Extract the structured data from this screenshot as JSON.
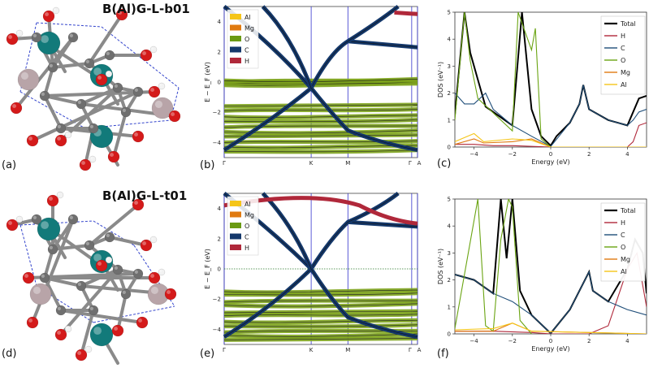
{
  "panels": {
    "a": "(a)",
    "b": "(b)",
    "c": "(c)",
    "d": "(d)",
    "e": "(e)",
    "f": "(f)"
  },
  "titles": {
    "top": "B(Al)G-L-b01",
    "bottom": "B(Al)G-L-t01"
  },
  "band_axes": {
    "ylabel": "E − E_F (eV)",
    "yticks": [
      "4",
      "2",
      "0",
      "−2",
      "−4"
    ],
    "kpoints": [
      "Γ",
      "K",
      "M",
      "Γ",
      "A"
    ]
  },
  "dos_axes": {
    "xlabel": "Energy (eV)",
    "ylabel": "DOS (eV⁻¹)",
    "xticks": [
      "−4",
      "−2",
      "0",
      "2",
      "4"
    ],
    "yticks": [
      "0",
      "1",
      "2",
      "3",
      "4",
      "5"
    ]
  },
  "band_legend": [
    {
      "label": "Al",
      "color": "#f5c518"
    },
    {
      "label": "Mg",
      "color": "#e07a10"
    },
    {
      "label": "O",
      "color": "#6a9a12"
    },
    {
      "label": "C",
      "color": "#14386b"
    },
    {
      "label": "H",
      "color": "#b0283a"
    }
  ],
  "dos_legend": [
    {
      "label": "Total",
      "color": "#000000"
    },
    {
      "label": "H",
      "color": "#b0283a"
    },
    {
      "label": "C",
      "color": "#1f4e79"
    },
    {
      "label": "O",
      "color": "#6aa412"
    },
    {
      "label": "Mg",
      "color": "#e07a10"
    },
    {
      "label": "Al",
      "color": "#f5c518"
    }
  ],
  "chart_data": [
    {
      "type": "line",
      "panel": "c",
      "xlabel": "Energy (eV)",
      "ylabel": "DOS (eV⁻¹)",
      "xlim": [
        -5,
        5
      ],
      "ylim": [
        0,
        5
      ],
      "series": [
        {
          "name": "Total",
          "x": [
            -5,
            -4.5,
            -4.2,
            -3.8,
            -3.4,
            -2,
            -1.5,
            -1,
            -0.5,
            0,
            0.3,
            1,
            1.5,
            1.7,
            2,
            3,
            4,
            4.3,
            4.6,
            5
          ],
          "y": [
            1.2,
            5,
            3.5,
            2.5,
            1.5,
            0.8,
            5,
            1.4,
            0.4,
            0.05,
            0.4,
            0.9,
            1.6,
            2.3,
            1.4,
            1.0,
            0.8,
            1.3,
            1.8,
            1.9
          ]
        },
        {
          "name": "H",
          "x": [
            -5,
            -4,
            -3,
            -2,
            0,
            2,
            4,
            4.3,
            4.6,
            5
          ],
          "y": [
            0.1,
            0.1,
            0.05,
            0.05,
            0,
            0,
            0,
            0.2,
            0.8,
            0.9
          ]
        },
        {
          "name": "C",
          "x": [
            -5,
            -4.5,
            -4,
            -3.4,
            -3,
            -2,
            -1,
            0,
            1,
            1.5,
            1.7,
            2,
            3,
            4,
            4.3,
            4.6,
            5
          ],
          "y": [
            2.0,
            1.6,
            1.6,
            2.0,
            1.4,
            0.8,
            0.4,
            0.02,
            0.9,
            1.6,
            2.3,
            1.4,
            1.0,
            0.8,
            1.0,
            1.3,
            1.4
          ]
        },
        {
          "name": "O",
          "x": [
            -5,
            -4.5,
            -4.2,
            -3.8,
            -2,
            -1.7,
            -1.5,
            -1,
            -0.8,
            -0.5,
            0
          ],
          "y": [
            1.0,
            5,
            3.2,
            1.8,
            0.6,
            5,
            4.6,
            3.6,
            4.4,
            0.3,
            0
          ]
        },
        {
          "name": "Mg",
          "x": [
            -5,
            -4,
            -3.5,
            -2,
            -1,
            0,
            5
          ],
          "y": [
            0.1,
            0.3,
            0.15,
            0.2,
            0.3,
            0,
            0
          ]
        },
        {
          "name": "Al",
          "x": [
            -5,
            -4,
            -3.5,
            -2,
            -1,
            0,
            5
          ],
          "y": [
            0.2,
            0.5,
            0.2,
            0.3,
            0.25,
            0,
            0
          ]
        }
      ]
    },
    {
      "type": "line",
      "panel": "f",
      "xlabel": "Energy (eV)",
      "ylabel": "DOS (eV⁻¹)",
      "xlim": [
        -5,
        5
      ],
      "ylim": [
        0,
        5
      ],
      "series": [
        {
          "name": "Total",
          "x": [
            -5,
            -4,
            -3,
            -2.6,
            -2.3,
            -2,
            -1.6,
            -1,
            0,
            1,
            2,
            2.2,
            3,
            4,
            4.4,
            4.8,
            5
          ],
          "y": [
            2.2,
            2.0,
            1.5,
            5,
            2.8,
            5,
            1.6,
            0.7,
            0.02,
            0.9,
            2.3,
            1.6,
            1.2,
            2.4,
            3.5,
            3.0,
            1.5
          ]
        },
        {
          "name": "H",
          "x": [
            -5,
            -3,
            -1,
            0,
            2,
            3,
            4,
            4.5,
            5
          ],
          "y": [
            0.1,
            0.1,
            0.05,
            0,
            0,
            0.3,
            2.4,
            3.0,
            1.0
          ]
        },
        {
          "name": "C",
          "x": [
            -5,
            -4,
            -3,
            -2,
            -1,
            0,
            1,
            2,
            2.2,
            3,
            4,
            5
          ],
          "y": [
            2.2,
            2.0,
            1.5,
            1.2,
            0.7,
            0.02,
            0.9,
            2.3,
            1.6,
            1.2,
            0.9,
            0.7
          ]
        },
        {
          "name": "O",
          "x": [
            -5,
            -3.8,
            -3.4,
            -3,
            -2.6,
            -2.2,
            -2,
            -1.6,
            -1
          ],
          "y": [
            0.2,
            5,
            0.3,
            0.1,
            3.5,
            5,
            4.7,
            0.5,
            0
          ]
        },
        {
          "name": "Mg",
          "x": [
            -5,
            -3,
            -2,
            -1,
            5
          ],
          "y": [
            0.1,
            0.1,
            0.4,
            0.1,
            0
          ]
        },
        {
          "name": "Al",
          "x": [
            -5,
            -3,
            -2,
            -1,
            5
          ],
          "y": [
            0.15,
            0.2,
            0.4,
            0.1,
            0
          ]
        }
      ]
    }
  ]
}
